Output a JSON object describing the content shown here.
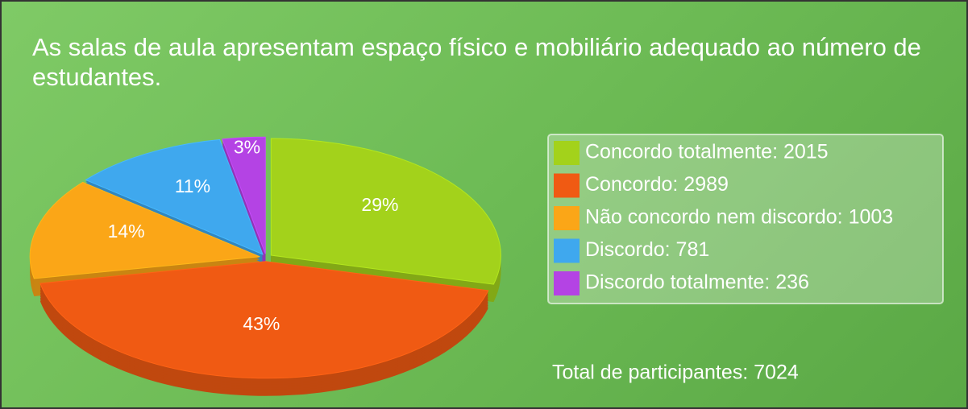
{
  "chart_data": {
    "type": "pie",
    "title": "As salas de aula apresentam espaço físico e mobiliário adequado ao número de estudantes.",
    "categories": [
      "Concordo totalmente: 2015",
      "Concordo: 2989",
      "Não concordo nem discordo: 1003",
      "Discordo: 781",
      "Discordo totalmente: 236"
    ],
    "values": [
      29,
      43,
      14,
      11,
      3
    ],
    "value_labels": [
      "29%",
      "43%",
      "14%",
      "11%",
      "3%"
    ],
    "colors": [
      "#a3d21b",
      "#f05a13",
      "#fba617",
      "#3fa8ee",
      "#b443e4"
    ],
    "annotation": "Total de participantes: 7024",
    "legend": "right"
  }
}
